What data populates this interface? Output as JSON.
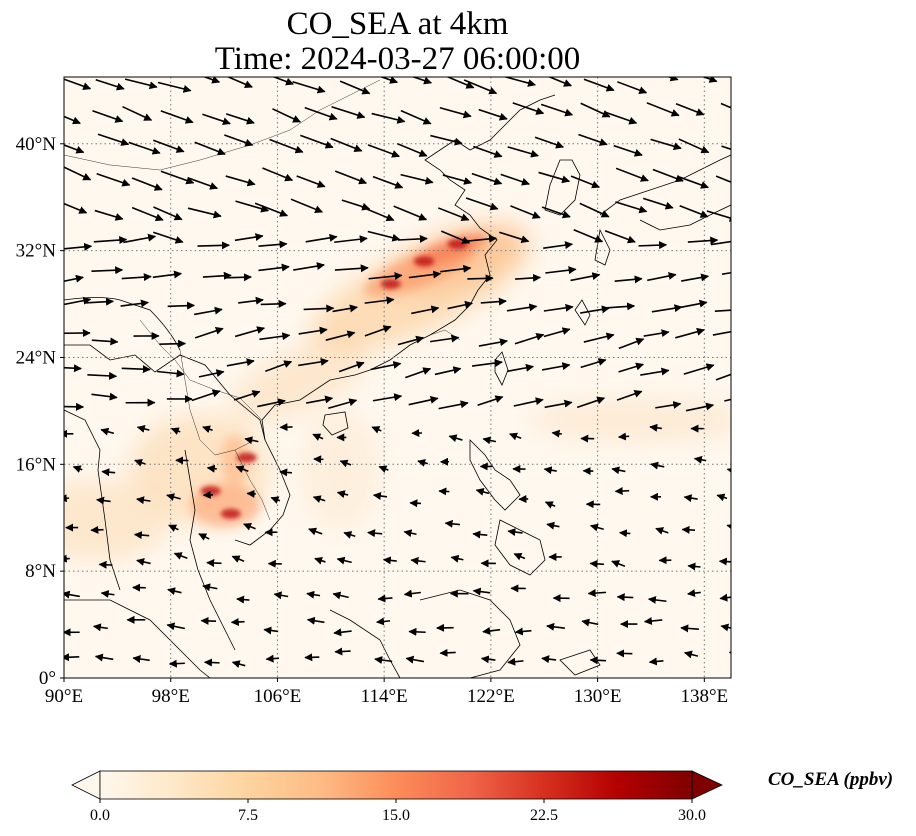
{
  "title": {
    "line1": "CO_SEA at 4km",
    "line2": "Time: 2024-03-27 06:00:00"
  },
  "map": {
    "projection": "PlateCarree",
    "lon_range": [
      90,
      140
    ],
    "lat_range": [
      0,
      45
    ],
    "lon_ticks": [
      90,
      98,
      106,
      114,
      122,
      130,
      138
    ],
    "lon_tick_labels": [
      "90°E",
      "98°E",
      "106°E",
      "114°E",
      "122°E",
      "130°E",
      "138°E"
    ],
    "lat_ticks": [
      0,
      8,
      16,
      24,
      32,
      40
    ],
    "lat_tick_labels": [
      "0°",
      "8°N",
      "16°N",
      "24°N",
      "32°N",
      "40°N"
    ],
    "gridlines": "dotted",
    "coastlines": true,
    "wind_vectors": true,
    "plume_hotspots_lon_lat": [
      [
        114.5,
        29.5
      ],
      [
        117,
        31.2
      ],
      [
        119.5,
        32.5
      ],
      [
        101,
        14
      ],
      [
        102.5,
        12.3
      ],
      [
        103.7,
        16.5
      ]
    ]
  },
  "colorbar": {
    "label": "CO_SEA (ppbv)",
    "colormap": "OrRd",
    "min": 0.0,
    "max": 30.0,
    "extend": "both",
    "ticks": [
      0.0,
      7.5,
      15.0,
      22.5,
      30.0
    ],
    "tick_labels": [
      "0.0",
      "7.5",
      "15.0",
      "22.5",
      "30.0"
    ],
    "colors": [
      "#fff7ec",
      "#fee8c8",
      "#fdd49e",
      "#fdbb84",
      "#fc8d59",
      "#ef6548",
      "#d7301f",
      "#b30000",
      "#7f0000"
    ]
  }
}
